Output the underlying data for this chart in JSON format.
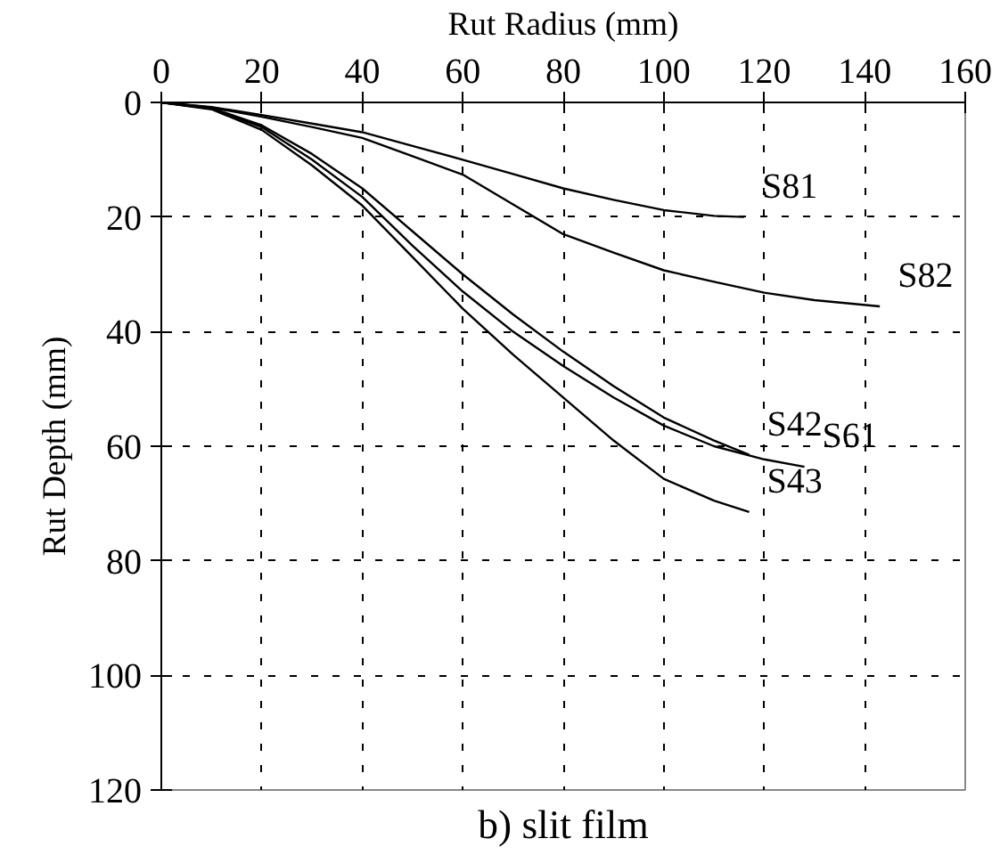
{
  "chart_data": {
    "type": "line",
    "title": "b) slit film",
    "xlabel": "Rut Radius (mm)",
    "ylabel": "Rut Depth (mm)",
    "xlim": [
      0,
      160
    ],
    "ylim": [
      120,
      0
    ],
    "xticks": [
      0,
      20,
      40,
      60,
      80,
      100,
      120,
      140,
      160
    ],
    "yticks": [
      0,
      20,
      40,
      60,
      80,
      100,
      120
    ],
    "grid": true,
    "line_style": "solid",
    "marker": "none",
    "series": [
      {
        "name": "S81",
        "color": "#000000",
        "x": [
          0,
          10,
          20,
          30,
          40,
          50,
          60,
          70,
          80,
          90,
          100,
          110,
          116
        ],
        "values": [
          0,
          0.8,
          2.2,
          3.7,
          5.2,
          7.6,
          10,
          12.5,
          15,
          17,
          18.8,
          19.8,
          20
        ]
      },
      {
        "name": "S82",
        "color": "#000000",
        "x": [
          0,
          10,
          20,
          30,
          40,
          50,
          60,
          70,
          80,
          90,
          100,
          110,
          120,
          130,
          143
        ],
        "values": [
          0,
          0.9,
          2.5,
          4.3,
          6.2,
          9.4,
          12.6,
          17.8,
          23,
          26.2,
          29.3,
          31.3,
          33.2,
          34.5,
          35.6
        ]
      },
      {
        "name": "S42",
        "color": "#000000",
        "x": [
          0,
          10,
          20,
          30,
          40,
          50,
          60,
          70,
          80,
          90,
          100,
          110,
          117
        ],
        "values": [
          0,
          1,
          4,
          9,
          15,
          22.5,
          30,
          37,
          43.5,
          49.5,
          55,
          59,
          61.5
        ]
      },
      {
        "name": "S61",
        "color": "#000000",
        "x": [
          0,
          10,
          20,
          30,
          40,
          50,
          60,
          70,
          80,
          90,
          100,
          110,
          120,
          128
        ],
        "values": [
          0,
          1.1,
          4.3,
          10,
          16.5,
          25,
          33,
          40,
          46,
          51.5,
          56.4,
          60,
          62.3,
          63.6
        ]
      },
      {
        "name": "S43",
        "color": "#000000",
        "x": [
          0,
          10,
          20,
          30,
          40,
          50,
          60,
          70,
          80,
          90,
          100,
          110,
          117
        ],
        "values": [
          0,
          1.2,
          4.8,
          11,
          18,
          27,
          36,
          44,
          51.5,
          59,
          65.7,
          69.5,
          71.5
        ]
      }
    ]
  }
}
